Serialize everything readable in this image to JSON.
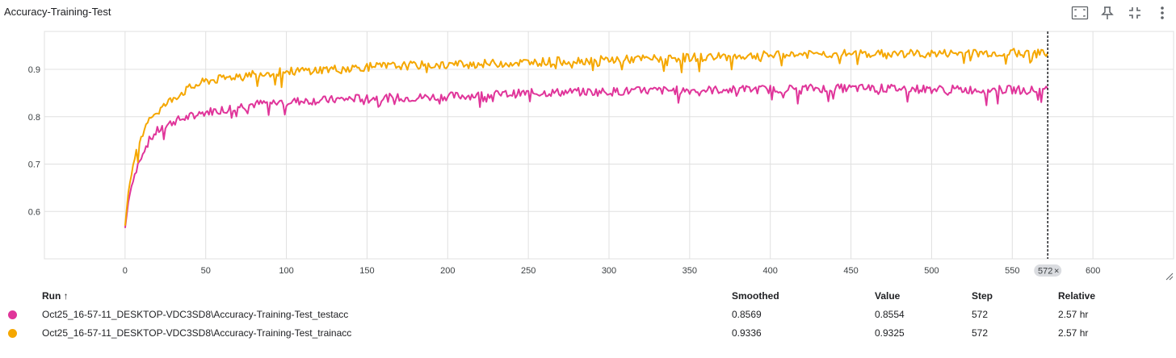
{
  "card": {
    "title": "Accuracy-Training-Test",
    "toolbar_icons": [
      "fit-domain-icon",
      "pin-icon",
      "collapse-icon",
      "more-vert-icon"
    ]
  },
  "chart_data": {
    "type": "line",
    "title": "Accuracy-Training-Test",
    "xlabel": "",
    "ylabel": "",
    "xlim": [
      -50,
      650
    ],
    "ylim": [
      0.5,
      0.98
    ],
    "x_ticks": [
      0,
      50,
      100,
      150,
      200,
      250,
      300,
      350,
      400,
      450,
      500,
      550,
      600
    ],
    "y_ticks": [
      0.6,
      0.7,
      0.8,
      0.9
    ],
    "y_tick_labels": [
      "0.6",
      "0.7",
      "0.8",
      "0.9"
    ],
    "grid": true,
    "cursor_step": 572,
    "cursor_label": "572",
    "cursor_close": "×",
    "series": [
      {
        "name": "Oct25_16-57-11_DESKTOP-VDC3SD8\\Accuracy-Training-Test_testacc",
        "color": "#e0359a",
        "points": [
          [
            0,
            0.565
          ],
          [
            2,
            0.62
          ],
          [
            5,
            0.67
          ],
          [
            10,
            0.72
          ],
          [
            15,
            0.75
          ],
          [
            20,
            0.77
          ],
          [
            30,
            0.79
          ],
          [
            40,
            0.8
          ],
          [
            50,
            0.81
          ],
          [
            60,
            0.815
          ],
          [
            75,
            0.825
          ],
          [
            100,
            0.832
          ],
          [
            125,
            0.835
          ],
          [
            150,
            0.84
          ],
          [
            175,
            0.84
          ],
          [
            200,
            0.843
          ],
          [
            225,
            0.846
          ],
          [
            250,
            0.85
          ],
          [
            275,
            0.852
          ],
          [
            300,
            0.853
          ],
          [
            325,
            0.855
          ],
          [
            350,
            0.856
          ],
          [
            375,
            0.857
          ],
          [
            400,
            0.858
          ],
          [
            425,
            0.86
          ],
          [
            450,
            0.86
          ],
          [
            475,
            0.86
          ],
          [
            500,
            0.858
          ],
          [
            525,
            0.857
          ],
          [
            550,
            0.857
          ],
          [
            572,
            0.8554
          ]
        ],
        "smoothed": 0.8569,
        "value": 0.8554,
        "step": 572,
        "relative": "2.57 hr"
      },
      {
        "name": "Oct25_16-57-11_DESKTOP-VDC3SD8\\Accuracy-Training-Test_trainacc",
        "color": "#f5a700",
        "points": [
          [
            0,
            0.57
          ],
          [
            2,
            0.64
          ],
          [
            5,
            0.7
          ],
          [
            10,
            0.76
          ],
          [
            15,
            0.8
          ],
          [
            20,
            0.81
          ],
          [
            30,
            0.84
          ],
          [
            40,
            0.86
          ],
          [
            50,
            0.875
          ],
          [
            60,
            0.88
          ],
          [
            75,
            0.89
          ],
          [
            100,
            0.895
          ],
          [
            125,
            0.9
          ],
          [
            150,
            0.905
          ],
          [
            175,
            0.908
          ],
          [
            200,
            0.91
          ],
          [
            225,
            0.912
          ],
          [
            250,
            0.915
          ],
          [
            275,
            0.918
          ],
          [
            300,
            0.92
          ],
          [
            325,
            0.922
          ],
          [
            350,
            0.925
          ],
          [
            375,
            0.927
          ],
          [
            400,
            0.93
          ],
          [
            425,
            0.932
          ],
          [
            450,
            0.933
          ],
          [
            475,
            0.933
          ],
          [
            500,
            0.933
          ],
          [
            525,
            0.934
          ],
          [
            550,
            0.935
          ],
          [
            572,
            0.9325
          ]
        ],
        "smoothed": 0.9336,
        "value": 0.9325,
        "step": 572,
        "relative": "2.57 hr"
      }
    ]
  },
  "table": {
    "headers": {
      "run": "Run ↑",
      "smoothed": "Smoothed",
      "value": "Value",
      "step": "Step",
      "relative": "Relative"
    },
    "rows": [
      {
        "run": "Oct25_16-57-11_DESKTOP-VDC3SD8\\Accuracy-Training-Test_testacc",
        "smoothed": "0.8569",
        "value": "0.8554",
        "step": "572",
        "relative": "2.57 hr",
        "color": "#e0359a"
      },
      {
        "run": "Oct25_16-57-11_DESKTOP-VDC3SD8\\Accuracy-Training-Test_trainacc",
        "smoothed": "0.9336",
        "value": "0.9325",
        "step": "572",
        "relative": "2.57 hr",
        "color": "#f5a700"
      }
    ]
  }
}
